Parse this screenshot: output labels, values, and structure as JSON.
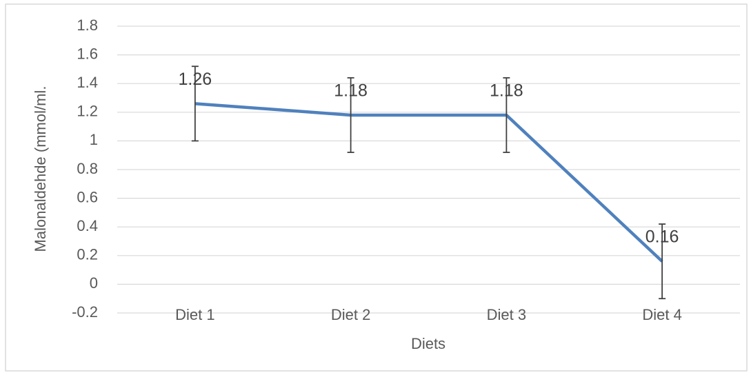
{
  "chart_data": {
    "type": "line",
    "x_label": "Diets",
    "y_label": "Malonaldehde  (mmol/ml.",
    "categories": [
      "Diet 1",
      "Diet 2",
      "Diet 3",
      "Diet 4"
    ],
    "values": [
      1.26,
      1.18,
      1.18,
      0.16
    ],
    "errors": [
      0.26,
      0.26,
      0.26,
      0.26
    ],
    "color": "#4f81bd",
    "error_color": "#404040",
    "ylim": [
      -0.2,
      1.8
    ],
    "yticks": [
      -0.2,
      0,
      0.2,
      0.4,
      0.6,
      0.8,
      1,
      1.2,
      1.4,
      1.6,
      1.8
    ],
    "grid": true
  }
}
